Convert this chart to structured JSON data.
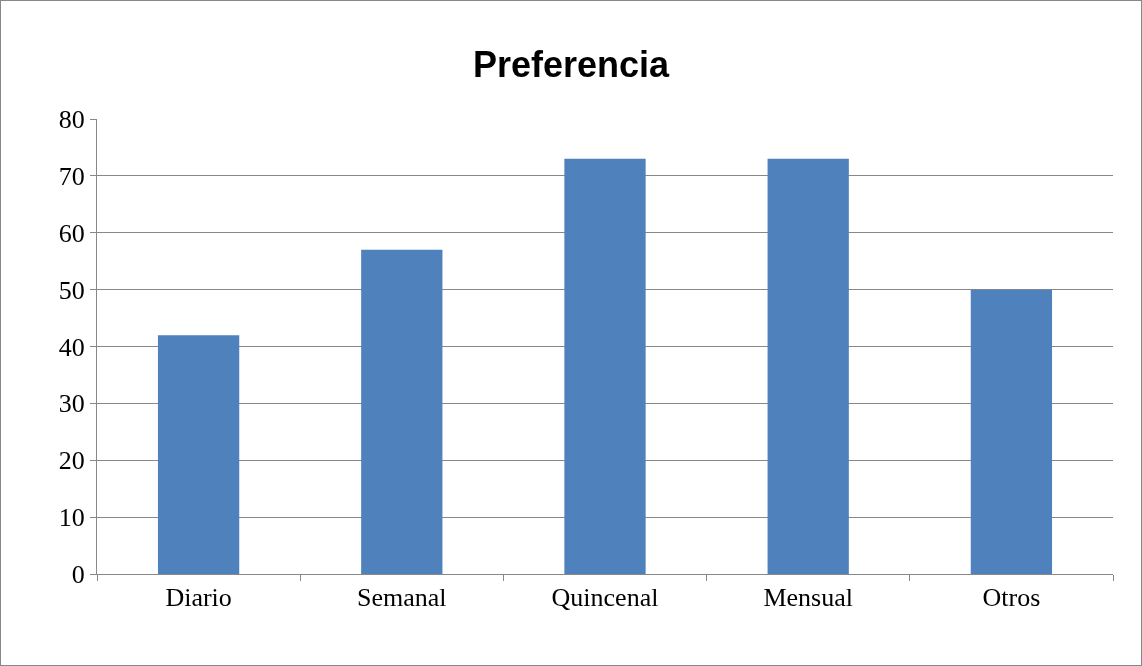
{
  "chart_data": {
    "type": "bar",
    "title": "Preferencia",
    "categories": [
      "Diario",
      "Semanal",
      "Quincenal",
      "Mensual",
      "Otros"
    ],
    "values": [
      42,
      57,
      73,
      73,
      50
    ],
    "color": "#4f81bd",
    "ylim": [
      0,
      80
    ],
    "yticks": [
      0,
      10,
      20,
      30,
      40,
      50,
      60,
      70,
      80
    ],
    "grid": "y",
    "legend": false
  }
}
